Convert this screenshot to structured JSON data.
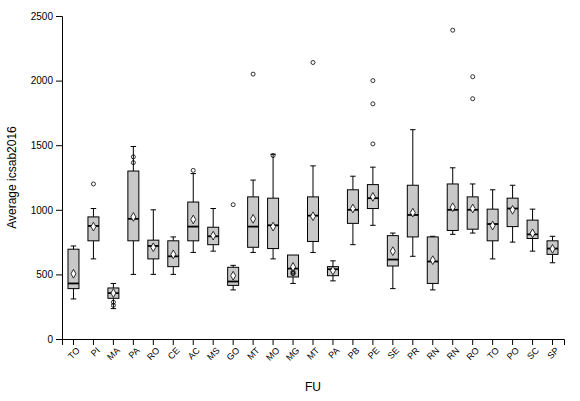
{
  "chart_data": {
    "type": "box",
    "categories": [
      "TO",
      "PI",
      "MA",
      "PA",
      "RO",
      "CE",
      "AC",
      "MS",
      "GO",
      "MT",
      "MO",
      "MG",
      "MT",
      "PA",
      "PB",
      "PE",
      "SE",
      "PR",
      "RN",
      "RN",
      "RO",
      "TO",
      "PO",
      "SC",
      "SP"
    ],
    "x_label": "FU",
    "y_label": "Average icsab2016",
    "color": "#c8c8c8",
    "ylim": [
      0,
      2500
    ],
    "yticks": [
      0,
      500,
      1000,
      1500,
      2000,
      2500
    ],
    "grid": false,
    "whislo": [
      310,
      620,
      235,
      500,
      500,
      500,
      670,
      680,
      380,
      670,
      620,
      430,
      670,
      450,
      730,
      880,
      390,
      640,
      380,
      810,
      820,
      620,
      750,
      680,
      590
    ],
    "q1": [
      390,
      760,
      315,
      760,
      620,
      560,
      760,
      730,
      415,
      710,
      700,
      480,
      755,
      490,
      895,
      1010,
      565,
      790,
      430,
      840,
      850,
      760,
      870,
      778,
      655
    ],
    "median": [
      430,
      875,
      355,
      930,
      720,
      640,
      870,
      795,
      445,
      870,
      880,
      545,
      955,
      540,
      1000,
      1090,
      615,
      960,
      600,
      1000,
      1000,
      890,
      1010,
      810,
      700
    ],
    "q3": [
      695,
      945,
      395,
      1300,
      765,
      760,
      1060,
      865,
      555,
      1100,
      1090,
      650,
      1100,
      560,
      1155,
      1195,
      800,
      1190,
      790,
      1200,
      1100,
      1005,
      1090,
      920,
      760
    ],
    "whishi": [
      720,
      1010,
      430,
      1490,
      1000,
      790,
      1280,
      1010,
      570,
      1230,
      1430,
      640,
      1340,
      605,
      1260,
      1330,
      820,
      1620,
      795,
      1325,
      1200,
      1155,
      1190,
      1005,
      795
    ],
    "mean": [
      505,
      870,
      355,
      945,
      710,
      655,
      925,
      800,
      490,
      930,
      870,
      558,
      950,
      530,
      1010,
      1100,
      680,
      978,
      610,
      1020,
      1010,
      878,
      1000,
      818,
      698
    ],
    "fliers": [
      [],
      [
        1200
      ],
      [
        285,
        260
      ],
      [
        1365,
        1410
      ],
      [],
      [],
      [
        1305
      ],
      [],
      [
        1040
      ],
      [
        2050
      ],
      [
        1420
      ],
      [
        505,
        510,
        520
      ],
      [
        2140
      ],
      [],
      [],
      [
        1510,
        1820,
        2000
      ],
      [],
      [],
      [],
      [
        2390
      ],
      [
        1860,
        2030
      ],
      [],
      [],
      [],
      []
    ]
  }
}
